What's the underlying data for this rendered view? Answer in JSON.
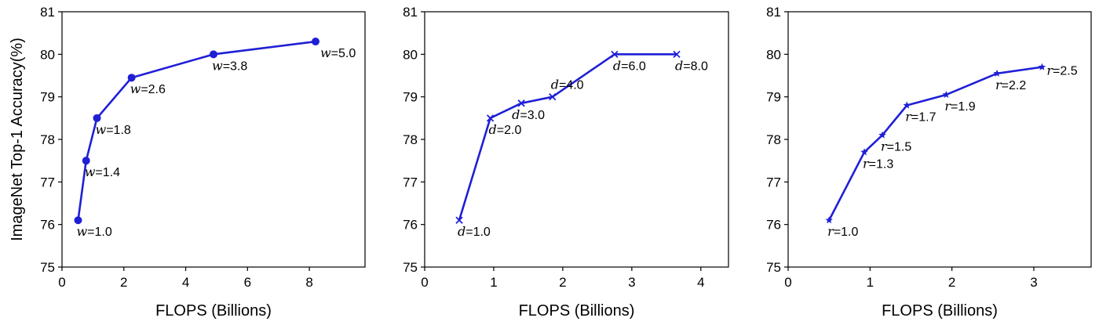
{
  "chart_data": [
    {
      "type": "line",
      "marker": "dot",
      "color": "#1f1fd6",
      "xlabel": "FLOPS (Billions)",
      "ylabel": "ImageNet Top-1 Accuracy(%)",
      "xlim": [
        0,
        9.8
      ],
      "ylim": [
        75,
        81
      ],
      "xticks": [
        0,
        2,
        4,
        6,
        8
      ],
      "yticks": [
        75,
        76,
        77,
        78,
        79,
        80,
        81
      ],
      "x": [
        0.52,
        0.78,
        1.13,
        2.25,
        4.9,
        8.2
      ],
      "y": [
        76.1,
        77.5,
        78.5,
        79.45,
        80.0,
        80.3
      ],
      "var": "w",
      "labels": [
        "1.0",
        "1.4",
        "1.8",
        "2.6",
        "3.8",
        "5.0"
      ]
    },
    {
      "type": "line",
      "marker": "x",
      "color": "#1f1fd6",
      "xlabel": "FLOPS (Billions)",
      "ylabel": "",
      "xlim": [
        0,
        4.4
      ],
      "ylim": [
        75,
        81
      ],
      "xticks": [
        0,
        1,
        2,
        3,
        4
      ],
      "yticks": [
        75,
        76,
        77,
        78,
        79,
        80,
        81
      ],
      "x": [
        0.5,
        0.95,
        1.4,
        1.85,
        2.75,
        3.65
      ],
      "y": [
        76.1,
        78.5,
        78.85,
        79.0,
        80.0,
        80.0
      ],
      "var": "d",
      "labels": [
        "1.0",
        "2.0",
        "3.0",
        "4.0",
        "6.0",
        "8.0"
      ]
    },
    {
      "type": "line",
      "marker": "star",
      "color": "#1f1fd6",
      "xlabel": "FLOPS (Billions)",
      "ylabel": "",
      "xlim": [
        0,
        3.7
      ],
      "ylim": [
        75,
        81
      ],
      "xticks": [
        0,
        1,
        2,
        3
      ],
      "yticks": [
        75,
        76,
        77,
        78,
        79,
        80,
        81
      ],
      "x": [
        0.5,
        0.93,
        1.15,
        1.45,
        1.93,
        2.55,
        3.1
      ],
      "y": [
        76.1,
        77.7,
        78.1,
        78.8,
        79.05,
        79.55,
        79.7
      ],
      "var": "r",
      "labels": [
        "1.0",
        "1.3",
        "1.5",
        "1.7",
        "1.9",
        "2.2",
        "2.5"
      ]
    }
  ]
}
